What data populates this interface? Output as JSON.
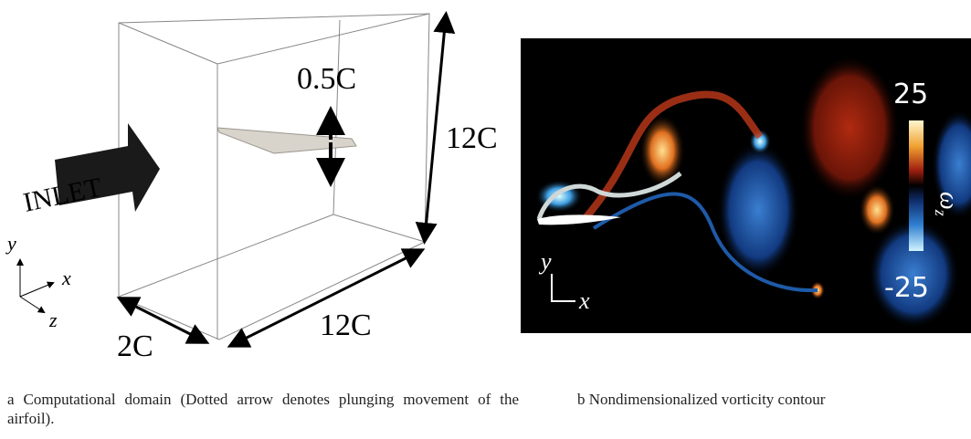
{
  "panel_a": {
    "inlet_label": "INLET",
    "amplitude_label": "0.5C",
    "height_label": "12C",
    "length_label": "12C",
    "width_label": "2C",
    "axes": {
      "y": "y",
      "x": "x",
      "z": "z"
    },
    "caption": "a Computational domain (Dotted arrow denotes plunging movement of the airfoil)."
  },
  "panel_b": {
    "colorbar": {
      "max": 25,
      "min": -25,
      "symbol": "ω",
      "subscript": "z"
    },
    "axes": {
      "y": "y",
      "x": "x"
    },
    "caption": "b Nondimensionalized vorticity contour"
  }
}
